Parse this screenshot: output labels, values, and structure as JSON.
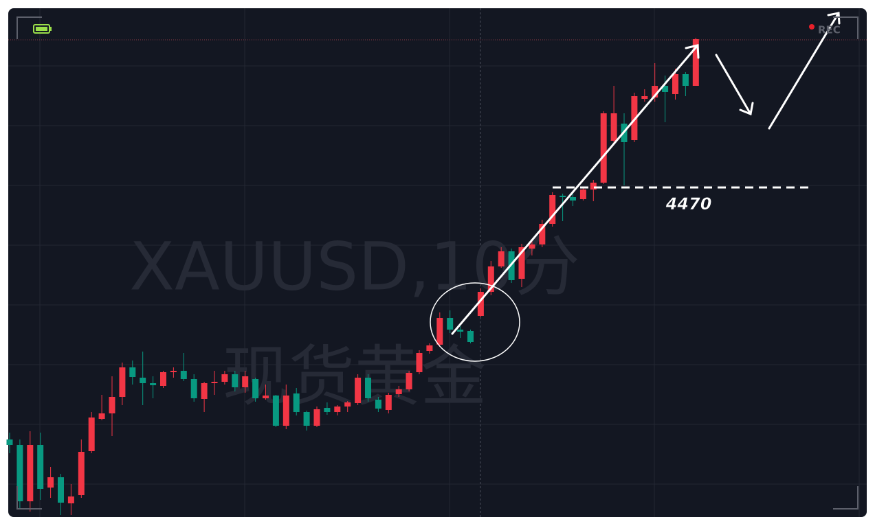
{
  "chart_data": {
    "type": "candlestick",
    "watermark_symbol": "XAUUSD,10分",
    "watermark_name": "现货黄金",
    "recording_label": "REC",
    "level": 4470,
    "up_color": "#f23645",
    "down_color": "#089981",
    "ylim": [
      4422.1,
      4496.1
    ],
    "open": [
      4433.3,
      4432.5,
      4424.3,
      4432.5,
      4426.3,
      4427.8,
      4424.0,
      4425.2,
      4431.6,
      4436.3,
      4437.1,
      4439.5,
      4443.8,
      4442.3,
      4441.5,
      4441.1,
      4443.1,
      4443.3,
      4442.1,
      4439.2,
      4441.5,
      4441.7,
      4442.8,
      4440.9,
      4442.1,
      4439.3,
      4439.7,
      4435.3,
      4440.0,
      4437.3,
      4435.3,
      4437.9,
      4437.3,
      4438.1,
      4438.6,
      4442.3,
      4439.1,
      4437.6,
      4439.9,
      4440.6,
      4443.1,
      4446.2,
      4447.1,
      4451.0,
      4449.3,
      4449.1,
      4451.3,
      4454.8,
      4458.5,
      4460.7,
      4456.7,
      4461.1,
      4461.7,
      4464.7,
      4468.8,
      4468.6,
      4468.3,
      4469.7,
      4470.7,
      4476.8,
      4479.3,
      4476.9,
      4482.9,
      4483.1,
      4484.8,
      4483.6,
      4486.5,
      4484.8
    ],
    "high": [
      4434.3,
      4433.3,
      4434.5,
      4434.3,
      4429.3,
      4428.3,
      4426.8,
      4433.3,
      4437.3,
      4439.8,
      4442.5,
      4444.5,
      4444.8,
      4446.1,
      4442.5,
      4443.3,
      4443.8,
      4445.9,
      4442.8,
      4441.7,
      4443.3,
      4443.3,
      4443.3,
      4443.3,
      4442.3,
      4441.3,
      4439.8,
      4441.3,
      4440.8,
      4437.5,
      4438.1,
      4438.7,
      4438.3,
      4438.9,
      4442.8,
      4442.8,
      4439.5,
      4440.1,
      4441.1,
      4443.3,
      4446.3,
      4447.3,
      4451.8,
      4452.1,
      4449.8,
      4449.3,
      4455.3,
      4459.3,
      4461.3,
      4461.1,
      4461.8,
      4462.3,
      4465.3,
      4469.3,
      4469.1,
      4469.1,
      4470.1,
      4471.1,
      4481.1,
      4484.8,
      4480.8,
      4483.8,
      4484.3,
      4488.1,
      4486.3,
      4487.3,
      4486.8,
      4491.8
    ],
    "low": [
      4431.3,
      4423.3,
      4422.8,
      4424.5,
      4424.8,
      4422.3,
      4422.3,
      4424.8,
      4431.3,
      4436.1,
      4433.8,
      4438.3,
      4441.3,
      4438.3,
      4439.3,
      4440.8,
      4442.3,
      4441.8,
      4438.8,
      4437.3,
      4439.8,
      4441.3,
      4440.3,
      4440.1,
      4438.8,
      4439.1,
      4435.1,
      4434.8,
      4436.8,
      4434.6,
      4435.1,
      4436.9,
      4436.8,
      4437.3,
      4438.3,
      4438.8,
      4437.3,
      4437.1,
      4439.5,
      4440.3,
      4442.8,
      4445.8,
      4446.8,
      4448.8,
      4448.1,
      4447.3,
      4451.1,
      4454.3,
      4458.3,
      4456.1,
      4455.5,
      4460.1,
      4461.3,
      4464.3,
      4465.1,
      4467.3,
      4468.1,
      4468.0,
      4470.5,
      4476.3,
      4470.3,
      4476.6,
      4482.5,
      4482.5,
      4479.5,
      4482.8,
      4483.3,
      4484.8
    ],
    "close": [
      4432.5,
      4424.3,
      4432.5,
      4426.1,
      4427.8,
      4424.1,
      4425.0,
      4431.5,
      4436.5,
      4437.1,
      4439.5,
      4443.8,
      4442.4,
      4441.5,
      4441.2,
      4443.1,
      4443.3,
      4442.1,
      4439.3,
      4441.5,
      4441.7,
      4442.8,
      4440.9,
      4442.5,
      4439.3,
      4439.7,
      4435.3,
      4439.7,
      4437.3,
      4435.3,
      4437.7,
      4437.3,
      4438.1,
      4438.7,
      4442.3,
      4439.3,
      4437.8,
      4439.8,
      4440.6,
      4443.0,
      4445.9,
      4447.0,
      4451.0,
      4449.3,
      4449.0,
      4447.5,
      4454.8,
      4458.5,
      4460.7,
      4456.5,
      4461.3,
      4461.7,
      4464.7,
      4468.9,
      4468.6,
      4468.1,
      4469.7,
      4470.7,
      4480.8,
      4480.8,
      4476.6,
      4483.3,
      4483.3,
      4484.8,
      4483.9,
      4486.5,
      4484.8,
      4491.6
    ]
  }
}
